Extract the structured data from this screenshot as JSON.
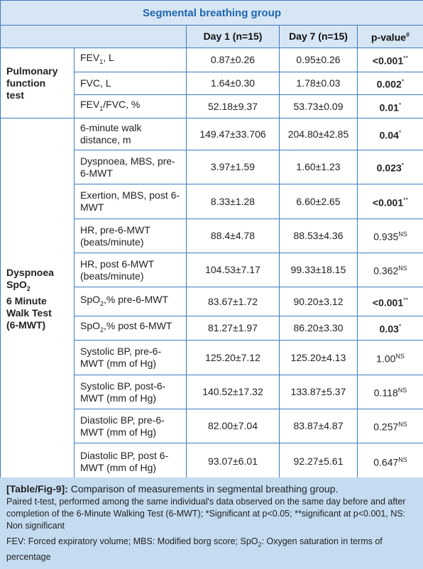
{
  "title": "Segmental breathing group",
  "columns": [
    "Day 1 (n=15)",
    "Day 7 (n=15)",
    "p-value"
  ],
  "p_value_mark": "#",
  "groups": [
    {
      "label": [
        [
          "Pulmonary"
        ],
        [
          "function"
        ],
        [
          "test"
        ]
      ],
      "rows": [
        {
          "measure": [
            "FEV",
            {
              "sub": "1"
            },
            ", L"
          ],
          "day1": "0.87±0.26",
          "day7": "0.95±0.26",
          "p": "<0.001",
          "p_mark": "**",
          "bold": true
        },
        {
          "measure": [
            "FVC, L"
          ],
          "day1": "1.64±0.30",
          "day7": "1.78±0.03",
          "p": "0.002",
          "p_mark": "*",
          "bold": true
        },
        {
          "measure": [
            "FEV",
            {
              "sub": "1"
            },
            "/FVC, %"
          ],
          "day1": "52.18±9.37",
          "day7": "53.73±0.09",
          "p": "0.01",
          "p_mark": "*",
          "bold": true
        }
      ]
    },
    {
      "label": [
        [
          "Dyspnoea"
        ],
        [
          "SpO",
          {
            "sub": "2"
          }
        ],
        [
          "6 Minute"
        ],
        [
          "Walk Test"
        ],
        [
          "(6-MWT)"
        ]
      ],
      "rows": [
        {
          "measure": [
            "6-minute walk distance, m"
          ],
          "day1": "149.47±33.706",
          "day7": "204.80±42.85",
          "p": "0.04",
          "p_mark": "*",
          "bold": true
        },
        {
          "measure": [
            "Dyspnoea, MBS, pre-6-MWT"
          ],
          "day1": "3.97±1.59",
          "day7": "1.60±1.23",
          "p": "0.023",
          "p_mark": "*",
          "bold": true
        },
        {
          "measure": [
            "Exertion, MBS, post 6-MWT"
          ],
          "day1": "8.33±1.28",
          "day7": "6.60±2.65",
          "p": "<0.001",
          "p_mark": "**",
          "bold": true
        },
        {
          "measure": [
            "HR, pre-6-MWT (beats/minute)"
          ],
          "day1": "88.4±4.78",
          "day7": "88.53±4.36",
          "p": "0.935",
          "p_mark": "NS",
          "bold": false
        },
        {
          "measure": [
            "HR, post 6-MWT (beats/minute)"
          ],
          "day1": "104.53±7.17",
          "day7": "99.33±18.15",
          "p": "0.362",
          "p_mark": "NS",
          "bold": false
        },
        {
          "measure": [
            "SpO",
            {
              "sub": "2"
            },
            ",% pre-6-MWT"
          ],
          "day1": "83.67±1.72",
          "day7": "90.20±3.12",
          "p": "<0.001",
          "p_mark": "**",
          "bold": true
        },
        {
          "measure": [
            "SpO",
            {
              "sub": "2"
            },
            ",% post 6-MWT"
          ],
          "day1": "81.27±1.97",
          "day7": "86.20±3.30",
          "p": "0.03",
          "p_mark": "*",
          "bold": true
        },
        {
          "measure": [
            "Systolic BP, pre-6-MWT (mm of Hg)"
          ],
          "day1": "125.20±7.12",
          "day7": "125.20±4.13",
          "p": "1.00",
          "p_mark": "NS",
          "bold": false
        },
        {
          "measure": [
            "Systolic BP, post-6-MWT (mm of Hg)"
          ],
          "day1": "140.52±17.32",
          "day7": "133.87±5.37",
          "p": "0.118",
          "p_mark": "NS",
          "bold": false
        },
        {
          "measure": [
            "Diastolic BP, pre-6-MWT (mm of Hg)"
          ],
          "day1": "82.00±7.04",
          "day7": "83.87±4.87",
          "p": "0.257",
          "p_mark": "NS",
          "bold": false
        },
        {
          "measure": [
            "Diastolic BP, post 6-MWT (mm of Hg)"
          ],
          "day1": "93.07±6.01",
          "day7": "92.27±5.61",
          "p": "0.647",
          "p_mark": "NS",
          "bold": false
        }
      ]
    }
  ],
  "caption": {
    "label": "[Table/Fig-9]:",
    "text": "Comparison of measurements in segmental breathing group.",
    "notes": [
      [
        "Paired t-test, performed among the same individual's data observed on the same day before and after completion of the 6-Minute Walking Test (6-MWT); *Significant at p<0.05; **significant at p<0.001, NS: Non significant"
      ],
      [
        "FEV: Forced expiratory volume; MBS: Modified borg score; SpO",
        {
          "sub": "2"
        },
        ": Oxygen saturation in terms of percentage"
      ]
    ]
  }
}
